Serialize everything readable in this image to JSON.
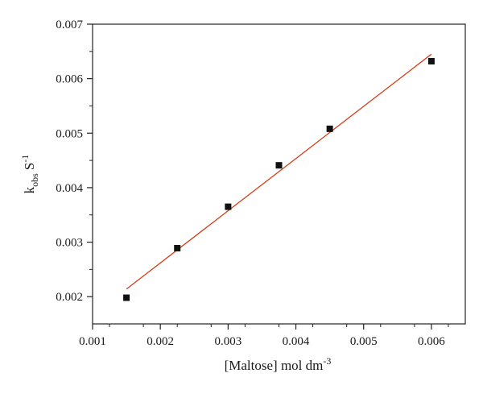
{
  "chart_data": {
    "type": "scatter",
    "xlabel": "[Maltose] mol dm",
    "xlabel_superscript": "-3",
    "ylabel_main": "k",
    "ylabel_subscript": "obs",
    "ylabel_unit": "S",
    "ylabel_superscript": "-1",
    "xlim": [
      0.001,
      0.0065
    ],
    "ylim": [
      0.0015,
      0.007
    ],
    "x_ticks": [
      "0.001",
      "0.002",
      "0.003",
      "0.004",
      "0.005",
      "0.006"
    ],
    "y_ticks": [
      "0.002",
      "0.003",
      "0.004",
      "0.005",
      "0.006",
      "0.007"
    ],
    "grid": false,
    "series": [
      {
        "marker": "square",
        "color": "#111111",
        "points": [
          {
            "x": 0.0015,
            "y": 0.00198
          },
          {
            "x": 0.00225,
            "y": 0.00289
          },
          {
            "x": 0.003,
            "y": 0.00365
          },
          {
            "x": 0.00375,
            "y": 0.00441
          },
          {
            "x": 0.0045,
            "y": 0.00508
          },
          {
            "x": 0.006,
            "y": 0.00632
          }
        ]
      }
    ],
    "fit_line": {
      "color": "#d1401a",
      "x_range": [
        0.0015,
        0.006
      ],
      "y_range": [
        0.00214,
        0.00645
      ]
    }
  }
}
